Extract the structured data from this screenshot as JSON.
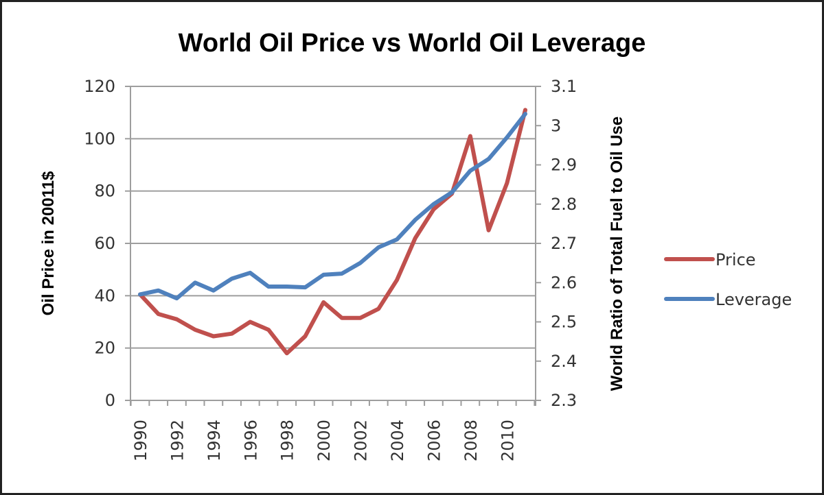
{
  "chart_data": {
    "type": "line",
    "title": "World Oil Price vs World Oil Leverage",
    "xlabel": "",
    "ylabel": "Oil Price in 20011$",
    "y2label": "World Ratio of Total Fuel to Oil Use",
    "x": [
      1990,
      1991,
      1992,
      1993,
      1994,
      1995,
      1996,
      1997,
      1998,
      1999,
      2000,
      2001,
      2002,
      2003,
      2004,
      2005,
      2006,
      2007,
      2008,
      2009,
      2010,
      2011
    ],
    "xtick_labels": [
      "1990",
      "1992",
      "1994",
      "1996",
      "1998",
      "2000",
      "2002",
      "2004",
      "2006",
      "2008",
      "2010"
    ],
    "ylim": [
      0,
      120
    ],
    "yticks": [
      "0",
      "20",
      "40",
      "60",
      "80",
      "100",
      "120"
    ],
    "y2lim": [
      2.3,
      3.1
    ],
    "y2ticks": [
      "2.3",
      "2.4",
      "2.5",
      "2.6",
      "2.7",
      "2.8",
      "2.9",
      "3",
      "3.1"
    ],
    "grid": true,
    "legend_position": "right",
    "series": [
      {
        "name": "Price",
        "axis": "left",
        "color": "#c0504d",
        "values": [
          40.5,
          33,
          31,
          27,
          24.5,
          25.5,
          30,
          27,
          18,
          24.5,
          37.5,
          31.5,
          31.5,
          35,
          46,
          62,
          73,
          79,
          101,
          65,
          83,
          111
        ]
      },
      {
        "name": "Leverage",
        "axis": "right",
        "color": "#4f81bd",
        "values": [
          2.57,
          2.58,
          2.56,
          2.6,
          2.58,
          2.61,
          2.625,
          2.59,
          2.59,
          2.588,
          2.62,
          2.623,
          2.65,
          2.69,
          2.71,
          2.76,
          2.8,
          2.83,
          2.885,
          2.915,
          2.97,
          3.03
        ]
      }
    ]
  }
}
